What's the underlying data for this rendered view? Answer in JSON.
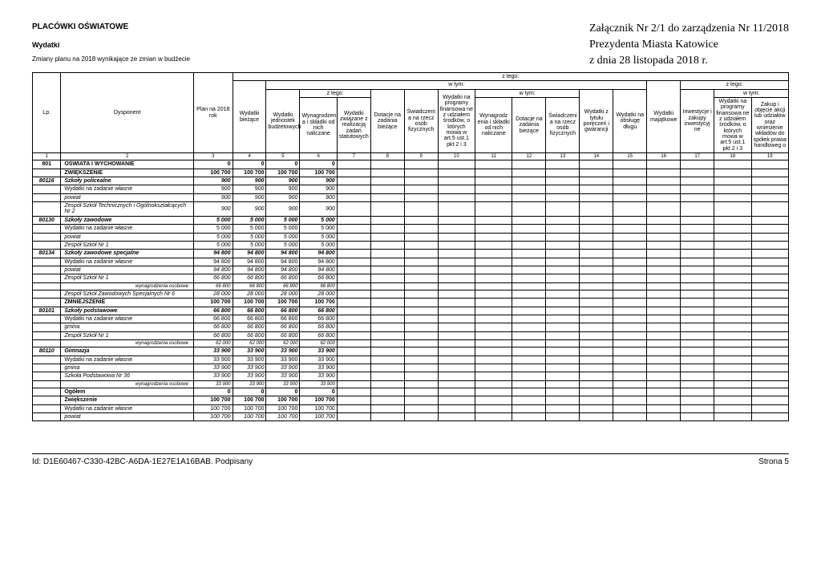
{
  "header": {
    "title": "PLACÓWKI OŚWIATOWE",
    "subtitle": "Wydatki",
    "note": "Zmiany planu na 2018 wynikające ze zmian w budżecie",
    "attach1": "Załącznik Nr 2/1 do zarządzenia Nr 11/2018",
    "attach2": "Prezydenta Miasta Katowice",
    "attach3": "z dnia 28 listopada 2018 r."
  },
  "columns": {
    "lp": "Lp.",
    "dysponent": "Dysponent",
    "plan": "Plan na 2018 rok",
    "wyd_biez": "Wydatki bieżące",
    "wyd_jedn": "Wydatki jednostek budżetowych",
    "wynagrodz": "Wynagrodzeni a i składki od nich naliczane",
    "wyd_stat": "Wydatki związane z realizacją zadań statutowych",
    "dotacje": "Dotacje na zadania bieżące",
    "swiad": "Świadczeni a na rzecz osób fizycznych",
    "wyd_prog": "Wydatki na programy finansowa ne z udziałem środków, o których mowa w art.5 ust.1 pkt 2 i 3",
    "wynag_eni": "Wynagrodz enia i składki od nich naliczane",
    "dotacje2": "Dotacje na zadania bieżące",
    "swiad2": "Świadczeni a na rzecz osób fizycznych",
    "wyd_tyt": "Wydatki z tytułu poręczeń i gwarancji",
    "wyd_obs": "Wydatki na obsługę długu",
    "wyd_maj": "Wydatki majątkowe",
    "inwest": "Inwestycje i zakupy inwestycyj ne",
    "wyd_prog2": "Wydatki na programy finansowa ne z udziałem środków, o których mowa w art.5 ust.1 pkt 2 i 3",
    "zakup": "Zakup i objęcie akcji lub udziałów oraz wniesienie wkładów do spółek prawa handloweg o",
    "ztego": "z tego:",
    "wtym": "w tym:"
  },
  "colnums": [
    "1",
    "2",
    "3",
    "4",
    "5",
    "6",
    "7",
    "8",
    "9",
    "10",
    "11",
    "12",
    "13",
    "14",
    "15",
    "16",
    "17",
    "18",
    "19"
  ],
  "rows": [
    {
      "lp": "801",
      "dys": "OŚWIATA I WYCHOWANIE",
      "v": [
        "0",
        "0",
        "0",
        "0"
      ],
      "cls": "bold"
    },
    {
      "lp": "",
      "dys": "ZWIĘKSZENIE",
      "v": [
        "100 700",
        "100 700",
        "100 700",
        "100 700"
      ],
      "cls": "bold"
    },
    {
      "lp": "80116",
      "dys": "Szkoły policealne",
      "v": [
        "900",
        "900",
        "900",
        "900"
      ],
      "cls": "bold-ital"
    },
    {
      "lp": "",
      "dys": "Wydatki na zadanie własne",
      "v": [
        "900",
        "900",
        "900",
        "900"
      ],
      "cls": ""
    },
    {
      "lp": "",
      "dys": "powiat",
      "v": [
        "900",
        "900",
        "900",
        "900"
      ],
      "cls": "ital"
    },
    {
      "lp": "",
      "dys": "Zespół Szkół Technicznych i Ogólnokształcących Nr 2",
      "v": [
        "900",
        "900",
        "900",
        "900"
      ],
      "cls": "ital"
    },
    {
      "lp": "80130",
      "dys": "Szkoły zawodowe",
      "v": [
        "5 000",
        "5 000",
        "5 000",
        "5 000"
      ],
      "cls": "bold-ital"
    },
    {
      "lp": "",
      "dys": "Wydatki na zadanie własne",
      "v": [
        "5 000",
        "5 000",
        "5 000",
        "5 000"
      ],
      "cls": ""
    },
    {
      "lp": "",
      "dys": "powiat",
      "v": [
        "5 000",
        "5 000",
        "5 000",
        "5 000"
      ],
      "cls": "ital"
    },
    {
      "lp": "",
      "dys": "Zespół Szkół Nr 1",
      "v": [
        "5 000",
        "5 000",
        "5 000",
        "5 000"
      ],
      "cls": "ital"
    },
    {
      "lp": "80134",
      "dys": "Szkoły zawodowe specjalne",
      "v": [
        "94 800",
        "94 800",
        "94 800",
        "94 800"
      ],
      "cls": "bold-ital"
    },
    {
      "lp": "",
      "dys": "Wydatki na zadanie własne",
      "v": [
        "94 800",
        "94 800",
        "94 800",
        "94 800"
      ],
      "cls": ""
    },
    {
      "lp": "",
      "dys": "powiat",
      "v": [
        "94 800",
        "94 800",
        "94 800",
        "94 800"
      ],
      "cls": "ital"
    },
    {
      "lp": "",
      "dys": "Zespół Szkół Nr 1",
      "v": [
        "66 800",
        "66 800",
        "66 800",
        "66 800"
      ],
      "cls": "ital"
    },
    {
      "lp": "",
      "dys": "wynagrodzenia osobowe",
      "v": [
        "66 800",
        "66 800",
        "66 800",
        "66 800"
      ],
      "cls": "ital tiny"
    },
    {
      "lp": "",
      "dys": "Zespół Szkół Zawodowych Specjalnych Nr 6",
      "v": [
        "28 000",
        "28 000",
        "28 000",
        "28 000"
      ],
      "cls": "ital"
    },
    {
      "lp": "",
      "dys": "ZMNIEJSZENIE",
      "v": [
        "100 700",
        "100 700",
        "100 700",
        "100 700"
      ],
      "cls": "bold"
    },
    {
      "lp": "80101",
      "dys": "Szkoły podstawowe",
      "v": [
        "66 800",
        "66 800",
        "66 800",
        "66 800"
      ],
      "cls": "bold-ital"
    },
    {
      "lp": "",
      "dys": "Wydatki na zadanie własne",
      "v": [
        "66 800",
        "66 800",
        "66 800",
        "66 800"
      ],
      "cls": ""
    },
    {
      "lp": "",
      "dys": "gmina",
      "v": [
        "66 800",
        "66 800",
        "66 800",
        "66 800"
      ],
      "cls": "ital"
    },
    {
      "lp": "",
      "dys": "Zespół Szkół Nr 1",
      "v": [
        "66 800",
        "66 800",
        "66 800",
        "66 800"
      ],
      "cls": "ital"
    },
    {
      "lp": "",
      "dys": "wynagrodzenia osobowe",
      "v": [
        "62 000",
        "62 000",
        "62 000",
        "62 000"
      ],
      "cls": "ital tiny"
    },
    {
      "lp": "80110",
      "dys": "Gimnazja",
      "v": [
        "33 900",
        "33 900",
        "33 900",
        "33 900"
      ],
      "cls": "bold-ital"
    },
    {
      "lp": "",
      "dys": "Wydatki na zadanie własne",
      "v": [
        "33 900",
        "33 900",
        "33 900",
        "33 900"
      ],
      "cls": ""
    },
    {
      "lp": "",
      "dys": "gmina",
      "v": [
        "33 900",
        "33 900",
        "33 900",
        "33 900"
      ],
      "cls": "ital"
    },
    {
      "lp": "",
      "dys": "Szkoła Podstawowa Nr 36",
      "v": [
        "33 900",
        "33 900",
        "33 900",
        "33 900"
      ],
      "cls": "ital"
    },
    {
      "lp": "",
      "dys": "wynagrodzenia osobowe",
      "v": [
        "33 900",
        "33 900",
        "33 900",
        "33 900"
      ],
      "cls": "ital tiny"
    },
    {
      "lp": "",
      "dys": "Ogółem",
      "v": [
        "0",
        "0",
        "0",
        "0"
      ],
      "cls": "bold"
    },
    {
      "lp": "",
      "dys": "Zwiększenie",
      "v": [
        "100 700",
        "100 700",
        "100 700",
        "100 700"
      ],
      "cls": "bold"
    },
    {
      "lp": "",
      "dys": "Wydatki na zadanie własne",
      "v": [
        "100 700",
        "100 700",
        "100 700",
        "100 700"
      ],
      "cls": ""
    },
    {
      "lp": "",
      "dys": "powiat",
      "v": [
        "100 700",
        "100 700",
        "100 700",
        "100 700"
      ],
      "cls": "ital"
    }
  ],
  "footer": {
    "left": "Id: D1E60467-C330-42BC-A6DA-1E27E1A16BAB. Podpisany",
    "right": "Strona 5"
  },
  "widths": {
    "lp": 32,
    "dys": 150,
    "plan": 44,
    "std": 38,
    "wide": 42
  }
}
